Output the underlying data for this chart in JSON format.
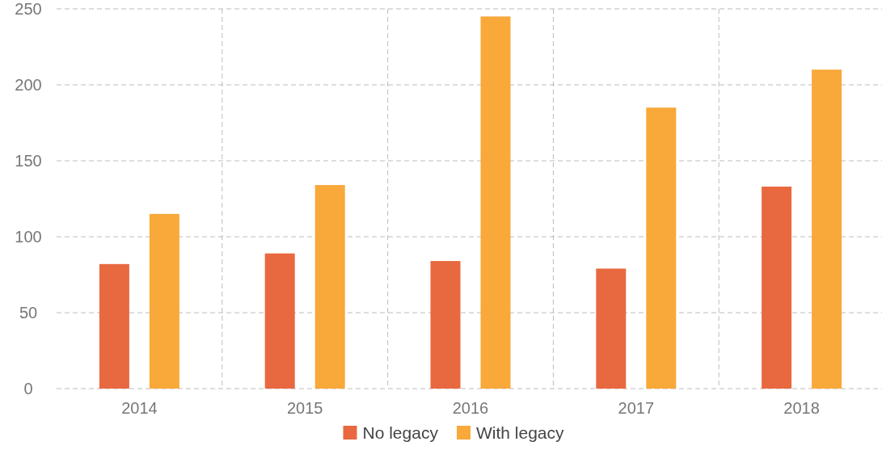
{
  "chart_data": {
    "type": "bar",
    "categories": [
      "2014",
      "2015",
      "2016",
      "2017",
      "2018"
    ],
    "series": [
      {
        "name": "No legacy",
        "color": "#e8693f",
        "values": [
          82,
          89,
          84,
          79,
          133
        ]
      },
      {
        "name": "With legacy",
        "color": "#f9a83a",
        "values": [
          115,
          134,
          245,
          185,
          210
        ]
      }
    ],
    "ylim": [
      0,
      250
    ],
    "yticks": [
      0,
      50,
      100,
      150,
      200,
      250
    ],
    "grid": true,
    "legend": "bottom"
  }
}
